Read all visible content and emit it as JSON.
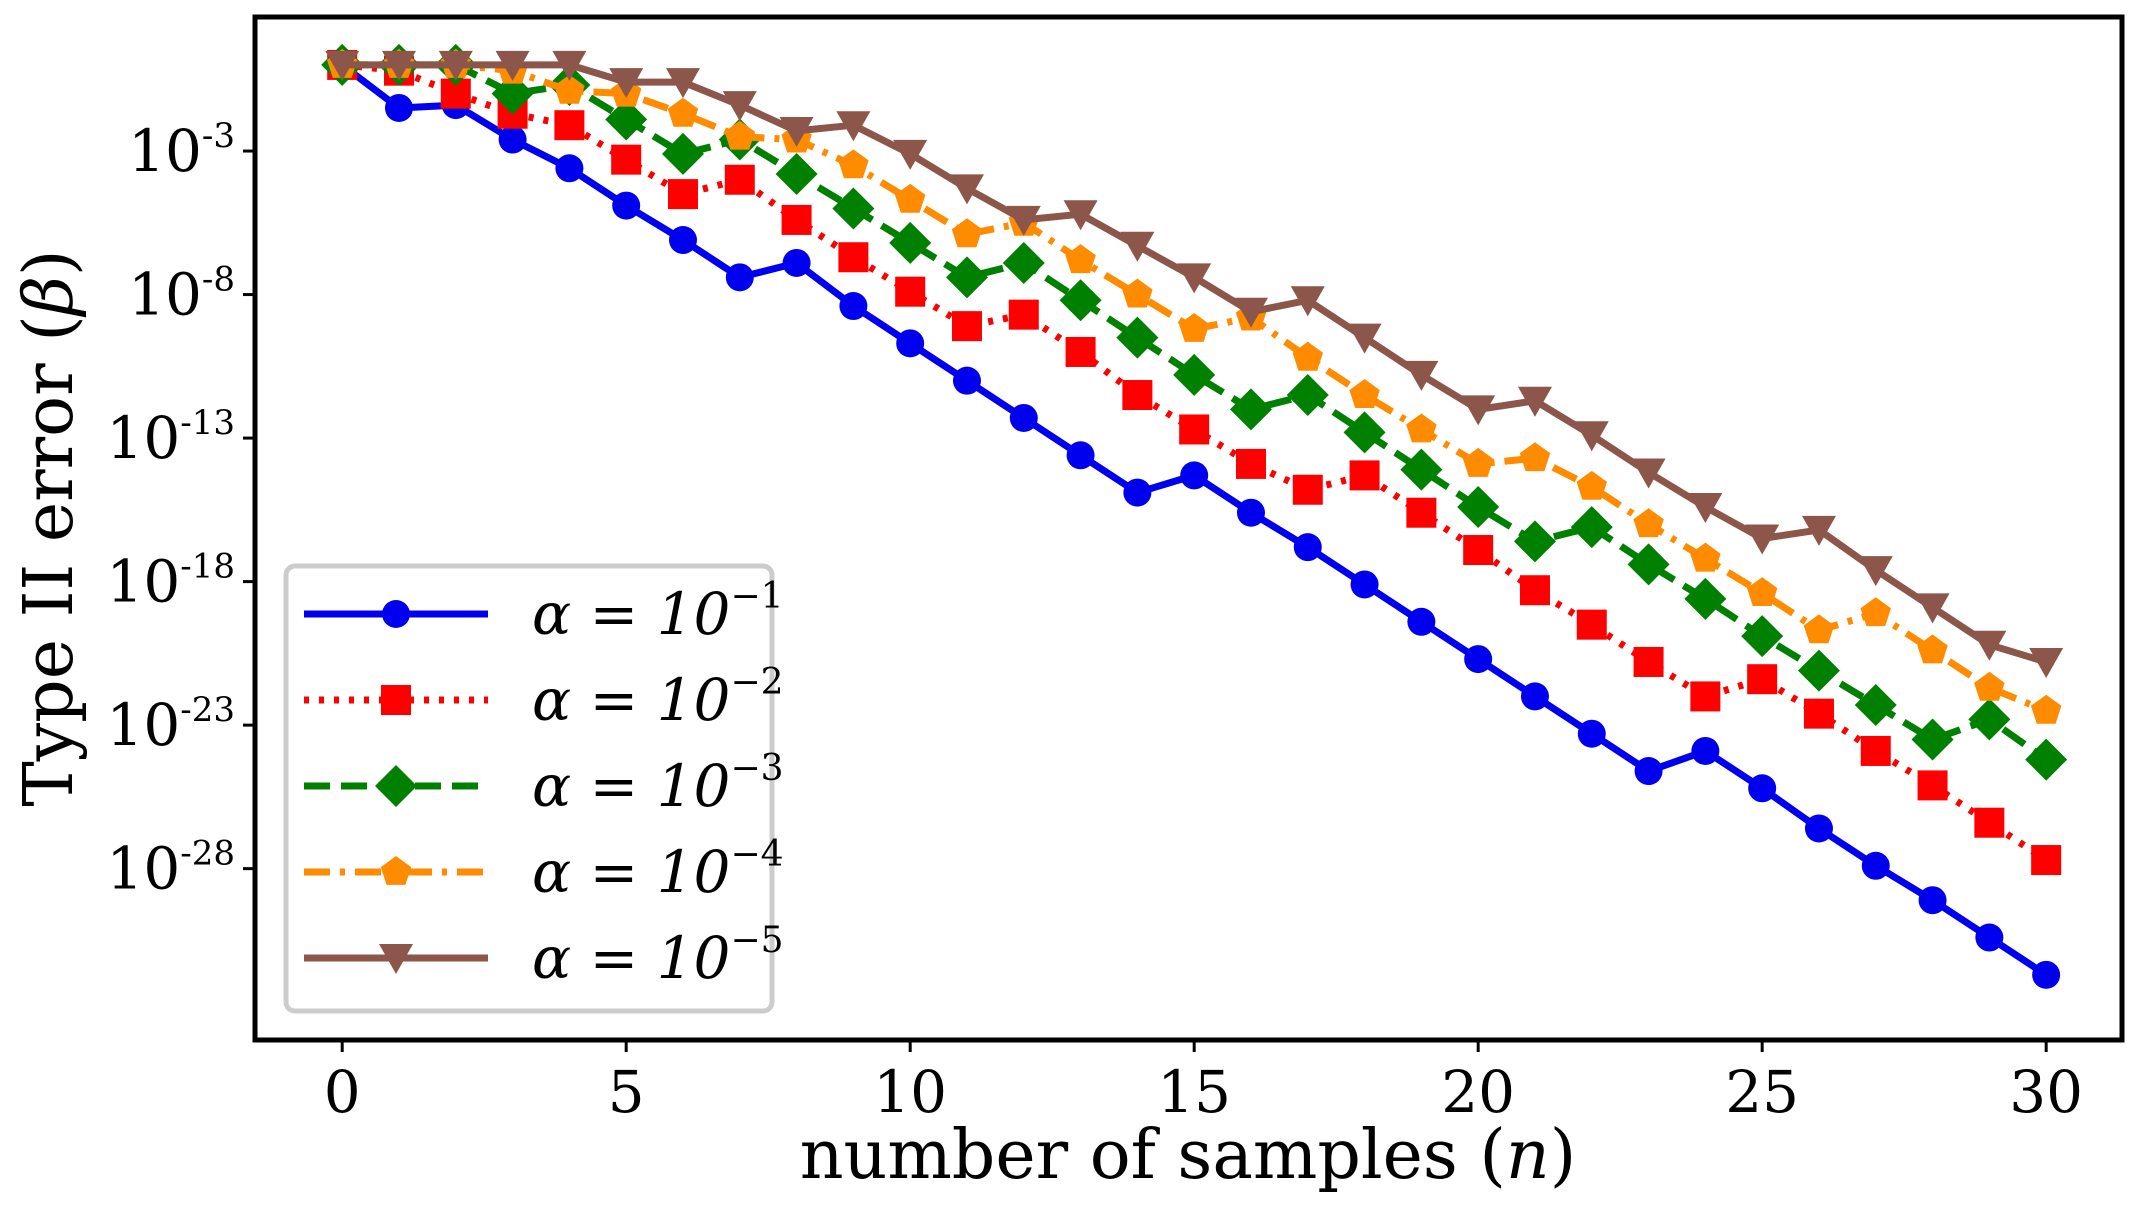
{
  "chart_data": {
    "type": "line",
    "title": "",
    "xlabel": "number of samples",
    "xlabel_var": "n",
    "ylabel": "Type II error",
    "ylabel_var": "β",
    "xlim": [
      -1.5,
      31.3
    ],
    "ylim_log10": [
      -33.9,
      1.6
    ],
    "xticks": [
      0,
      5,
      10,
      15,
      20,
      25,
      30
    ],
    "yticks": [
      {
        "base": "10",
        "exp": "-3",
        "value": -3
      },
      {
        "base": "10",
        "exp": "-8",
        "value": -8
      },
      {
        "base": "10",
        "exp": "-13",
        "value": -13
      },
      {
        "base": "10",
        "exp": "-18",
        "value": -18
      },
      {
        "base": "10",
        "exp": "-23",
        "value": -23
      },
      {
        "base": "10",
        "exp": "-28",
        "value": -28
      }
    ],
    "legend_position": "lower-left",
    "x": [
      0,
      1,
      2,
      3,
      4,
      5,
      6,
      7,
      8,
      9,
      10,
      11,
      12,
      13,
      14,
      15,
      16,
      17,
      18,
      19,
      20,
      21,
      22,
      23,
      24,
      25,
      26,
      27,
      28,
      29,
      30
    ],
    "series": [
      {
        "name": "alpha-1e-1",
        "legend_prefix": "α = 10",
        "legend_exp": "−1",
        "color": "#0000ee",
        "linestyle": "solid",
        "marker": "circle",
        "log10_values": [
          0,
          -1.5,
          -1.4,
          -2.6,
          -3.6,
          -4.9,
          -6.1,
          -7.4,
          -6.9,
          -8.4,
          -9.7,
          -11.0,
          -12.3,
          -13.6,
          -14.9,
          -14.3,
          -15.6,
          -16.8,
          -18.1,
          -19.4,
          -20.7,
          -22.0,
          -23.3,
          -24.6,
          -23.9,
          -25.2,
          -26.6,
          -27.9,
          -29.1,
          -30.4,
          -31.7
        ]
      },
      {
        "name": "alpha-1e-2",
        "legend_prefix": "α = 10",
        "legend_exp": "−2",
        "color": "#ff0000",
        "linestyle": "dotted",
        "marker": "square",
        "log10_values": [
          0,
          -0.2,
          -1.0,
          -1.7,
          -2.1,
          -3.3,
          -4.5,
          -4.0,
          -5.4,
          -6.7,
          -7.9,
          -9.1,
          -8.7,
          -10.0,
          -11.5,
          -12.7,
          -13.9,
          -14.8,
          -14.3,
          -15.6,
          -16.9,
          -18.3,
          -19.5,
          -20.8,
          -22.0,
          -21.4,
          -22.6,
          -23.9,
          -25.1,
          -26.4,
          -27.7
        ]
      },
      {
        "name": "alpha-1e-3",
        "legend_prefix": "α = 10",
        "legend_exp": "−3",
        "color": "#008000",
        "linestyle": "dashed",
        "marker": "diamond",
        "log10_values": [
          0,
          0,
          0,
          -1.0,
          -0.7,
          -1.9,
          -3.1,
          -2.6,
          -3.8,
          -5.0,
          -6.2,
          -7.4,
          -6.9,
          -8.2,
          -9.5,
          -10.8,
          -12.0,
          -11.5,
          -12.8,
          -14.1,
          -15.4,
          -16.6,
          -16.1,
          -17.4,
          -18.6,
          -19.9,
          -21.1,
          -22.3,
          -23.5,
          -22.8,
          -24.2
        ]
      },
      {
        "name": "alpha-1e-4",
        "legend_prefix": "α = 10",
        "legend_exp": "−4",
        "color": "#ff8c00",
        "linestyle": "dashdot",
        "marker": "pentagon",
        "log10_values": [
          0,
          0,
          0,
          -0.2,
          -0.9,
          -1.0,
          -1.7,
          -2.5,
          -2.6,
          -3.5,
          -4.7,
          -5.9,
          -5.5,
          -6.8,
          -8.0,
          -9.2,
          -8.8,
          -10.2,
          -11.5,
          -12.7,
          -13.9,
          -13.7,
          -14.7,
          -16.0,
          -17.2,
          -18.4,
          -19.7,
          -19.1,
          -20.4,
          -21.7,
          -22.5
        ]
      },
      {
        "name": "alpha-1e-5",
        "legend_prefix": "α = 10",
        "legend_exp": "−5",
        "color": "#8c564b",
        "linestyle": "solid",
        "marker": "triangle-down",
        "log10_values": [
          0,
          0,
          0,
          0,
          0,
          -0.6,
          -0.6,
          -1.4,
          -2.3,
          -2.1,
          -3.1,
          -4.3,
          -5.4,
          -5.2,
          -6.3,
          -7.4,
          -8.6,
          -8.2,
          -9.5,
          -10.8,
          -12.0,
          -11.7,
          -12.9,
          -14.2,
          -15.4,
          -16.5,
          -16.2,
          -17.6,
          -18.9,
          -20.2,
          -20.8
        ]
      }
    ]
  }
}
